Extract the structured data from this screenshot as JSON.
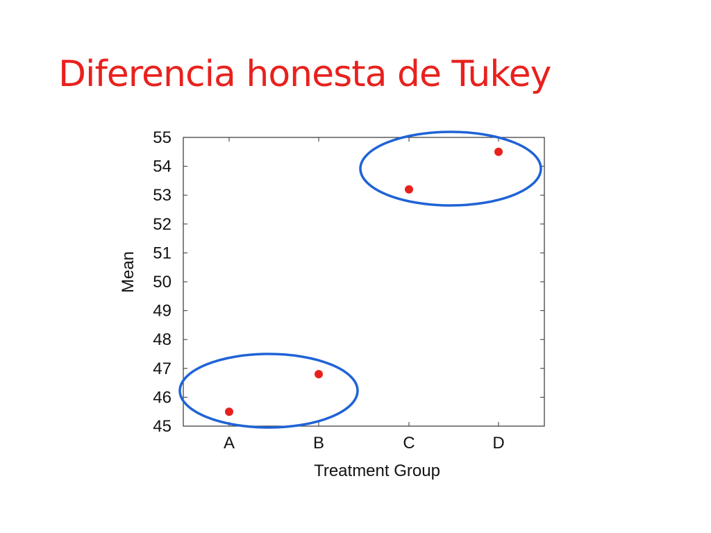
{
  "slide": {
    "title": "Diferencia honesta de Tukey"
  },
  "colors": {
    "title": "#e8211d",
    "points": "#e8211d",
    "group_ellipses": "#1f63d6",
    "axes": "#333333"
  },
  "chart_data": {
    "type": "scatter",
    "title": "",
    "xlabel": "Treatment Group",
    "ylabel": "Mean",
    "categories": [
      "A",
      "B",
      "C",
      "D"
    ],
    "values": [
      45.5,
      46.8,
      53.2,
      54.5
    ],
    "ylim": [
      45,
      55
    ],
    "yticks": [
      "45",
      "46",
      "47",
      "48",
      "49",
      "50",
      "51",
      "52",
      "53",
      "54",
      "55"
    ],
    "grid": false,
    "legend": "none",
    "groupings": [
      {
        "members": [
          "A",
          "B"
        ]
      },
      {
        "members": [
          "C",
          "D"
        ]
      }
    ]
  }
}
